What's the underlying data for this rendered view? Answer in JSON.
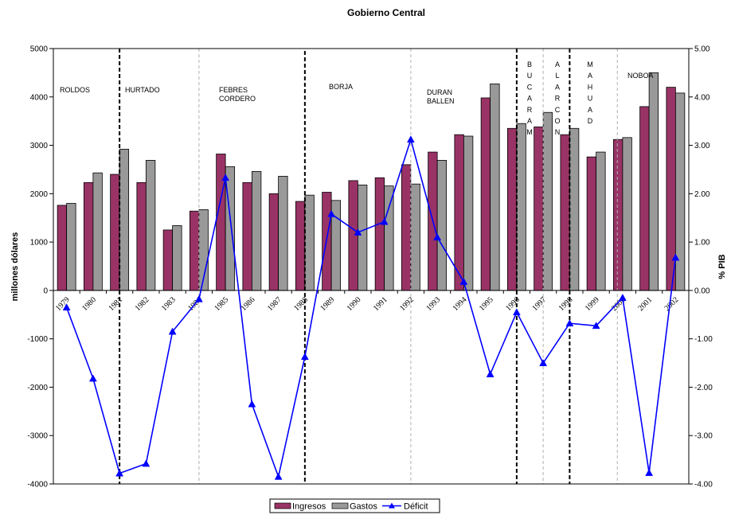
{
  "chart_data": {
    "type": "bar",
    "title": "Gobierno Central",
    "categories": [
      "1979",
      "1980",
      "1981",
      "1982",
      "1983",
      "1984",
      "1985",
      "1986",
      "1987",
      "1988",
      "1989",
      "1990",
      "1991",
      "1992",
      "1993",
      "1994",
      "1995",
      "1996",
      "1997",
      "1998",
      "1999",
      "2000",
      "2001",
      "2002"
    ],
    "ylabel": "millones dólares",
    "ylim": [
      -4000,
      5000
    ],
    "yticks": [
      "5000",
      "4000",
      "3000",
      "2000",
      "1000",
      "0",
      "-1000",
      "-2000",
      "-3000",
      "-4000"
    ],
    "y2label": "% PIB",
    "y2lim": [
      -4.0,
      5.0
    ],
    "y2ticks": [
      "5.00",
      "4.00",
      "3.00",
      "2.00",
      "1.00",
      "0.00",
      "-1.00",
      "-2.00",
      "-3.00",
      "-4.00"
    ],
    "series": [
      {
        "name": "Ingresos",
        "type": "bar",
        "axis": "left",
        "values": [
          1760,
          2230,
          2400,
          2230,
          1250,
          1640,
          2820,
          2230,
          2000,
          1840,
          2030,
          2270,
          2330,
          2600,
          2860,
          3220,
          3980,
          3350,
          3380,
          3220,
          2760,
          3120,
          3800,
          4200
        ]
      },
      {
        "name": "Gastos",
        "type": "bar",
        "axis": "left",
        "values": [
          1800,
          2430,
          2920,
          2690,
          1340,
          1670,
          2560,
          2460,
          2360,
          1970,
          1860,
          2180,
          2160,
          2200,
          2690,
          3190,
          4270,
          3450,
          3680,
          3350,
          2860,
          3160,
          4500,
          4080
        ]
      },
      {
        "name": "Déficit",
        "type": "line",
        "axis": "right",
        "values": [
          -0.35,
          -1.82,
          -3.78,
          -3.58,
          -0.85,
          -0.18,
          2.33,
          -2.35,
          -3.85,
          -1.37,
          1.58,
          1.2,
          1.42,
          3.12,
          1.1,
          0.18,
          -1.73,
          -0.45,
          -1.5,
          -0.68,
          -0.73,
          -0.15,
          -3.77,
          0.68
        ]
      }
    ],
    "periods": [
      {
        "label": "ROLDOS",
        "start": 0,
        "end": 2.5,
        "divider": "dashed-bold",
        "divider_y": [
          5000,
          -4000
        ]
      },
      {
        "label": "HURTADO",
        "start": 2.5,
        "end": 5.5,
        "divider": "dashed-gray",
        "divider_y": [
          5000,
          -4000
        ]
      },
      {
        "label": "FEBRES CORDERO",
        "start": 5.5,
        "end": 9.5,
        "divider": "dashed-bold",
        "divider_y": [
          4950,
          -4000
        ]
      },
      {
        "label": "BORJA",
        "start": 9.5,
        "end": 13.5,
        "divider": "dashed-gray",
        "divider_y": [
          5000,
          -4000
        ]
      },
      {
        "label": "DURAN BALLEN",
        "start": 13.5,
        "end": 17.5,
        "divider": "dashed-bold",
        "divider_y": [
          5000,
          -4000
        ]
      },
      {
        "label": "BUCARAM",
        "start": 17.5,
        "end": 18.5,
        "divider": "dashed-gray",
        "divider_y": [
          5000,
          -4000
        ]
      },
      {
        "label": "ALARCON",
        "start": 18.5,
        "end": 19.5,
        "divider": "dashed-bold",
        "divider_y": [
          5000,
          -4000
        ]
      },
      {
        "label": "MAHUAD",
        "start": 19.5,
        "end": 21.3,
        "divider": "dashed-gray",
        "divider_y": [
          5000,
          -4000
        ]
      },
      {
        "label": "NOBOA",
        "start": 21.3,
        "end": 24,
        "divider": "none"
      }
    ],
    "legend_position": "bottom",
    "grid": false
  },
  "legend": {
    "items": [
      "Ingresos",
      "Gastos",
      "Déficit"
    ]
  },
  "colors": {
    "ingresos": "#993366",
    "gastos": "#999999",
    "deficit": "#0000FF",
    "axis": "#000000"
  }
}
